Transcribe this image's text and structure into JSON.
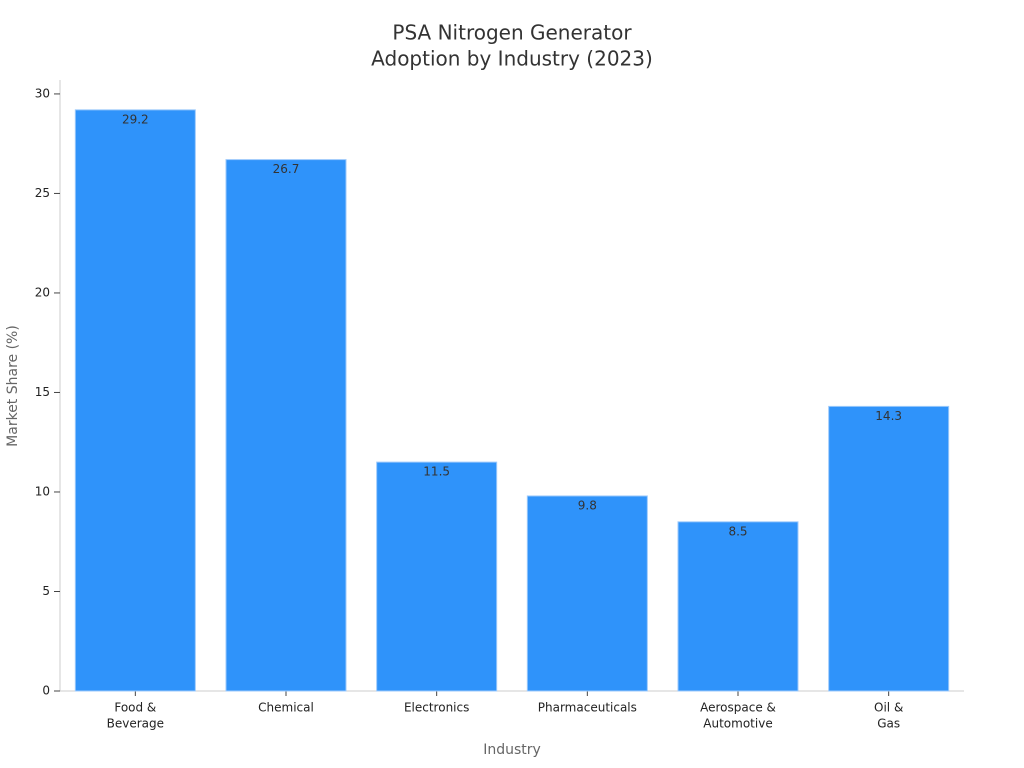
{
  "chart_data": {
    "type": "bar",
    "title": [
      "PSA Nitrogen Generator",
      "Adoption by Industry (2023)"
    ],
    "categories": [
      [
        "Food &",
        "Beverage"
      ],
      [
        "Chemical"
      ],
      [
        "Electronics"
      ],
      [
        "Pharmaceuticals"
      ],
      [
        "Aerospace &",
        "Automotive"
      ],
      [
        "Oil &",
        "Gas"
      ]
    ],
    "values": [
      29.2,
      26.7,
      11.5,
      9.8,
      8.5,
      14.3
    ],
    "value_labels": [
      "29.2",
      "26.7",
      "11.5",
      "9.8",
      "8.5",
      "14.3"
    ],
    "color": "#2f93fa",
    "xlabel": "Industry",
    "ylabel": "Market Share (%)",
    "ylim": [
      0,
      30.7
    ],
    "yticks": [
      0,
      5,
      10,
      15,
      20,
      25,
      30
    ],
    "grid": false
  }
}
